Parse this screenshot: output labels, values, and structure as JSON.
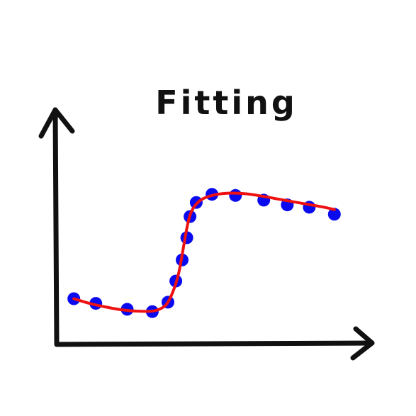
{
  "chart_data": {
    "type": "scatter",
    "title": "Fitting",
    "xlabel": "",
    "ylabel": "",
    "grid": false,
    "xlim": [
      0,
      10
    ],
    "ylim": [
      0,
      10
    ],
    "points": {
      "x": [
        0.5,
        1.2,
        2.2,
        3.0,
        3.5,
        3.75,
        3.95,
        4.1,
        4.2,
        4.4,
        4.9,
        5.65,
        6.55,
        7.3,
        8.0,
        8.8
      ],
      "y": [
        1.95,
        1.75,
        1.5,
        1.4,
        1.8,
        2.7,
        3.6,
        4.55,
        5.45,
        6.05,
        6.4,
        6.35,
        6.15,
        5.95,
        5.85,
        5.55
      ]
    },
    "fit": {
      "x": [
        0.5,
        1.0,
        1.5,
        2.0,
        2.5,
        3.0,
        3.3,
        3.5,
        3.7,
        3.85,
        4.0,
        4.1,
        4.2,
        4.35,
        4.6,
        5.0,
        5.5,
        6.0,
        6.5,
        7.0,
        7.5,
        8.0,
        8.5,
        8.8
      ],
      "y": [
        1.95,
        1.75,
        1.6,
        1.48,
        1.42,
        1.42,
        1.55,
        1.8,
        2.4,
        3.1,
        4.2,
        4.95,
        5.5,
        5.9,
        6.2,
        6.38,
        6.45,
        6.42,
        6.32,
        6.2,
        6.08,
        5.96,
        5.84,
        5.75
      ]
    },
    "colors": {
      "points": "#0a0aee",
      "fit": "#ee1111",
      "axes": "#111111"
    }
  }
}
